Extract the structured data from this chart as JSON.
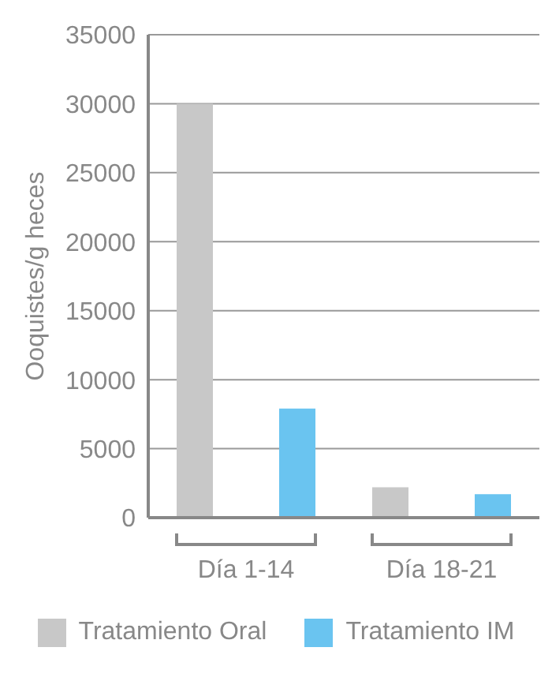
{
  "chart_data": {
    "type": "bar",
    "ylabel": "Ooquistes/g heces",
    "categories": [
      "Día 1-14",
      "Día 18-21"
    ],
    "series": [
      {
        "name": "Tratamiento Oral",
        "color": "#c8c8c8",
        "values": [
          30000,
          2200
        ]
      },
      {
        "name": "Tratamiento IM",
        "color": "#6ac4f0",
        "values": [
          7900,
          1700
        ]
      }
    ],
    "ylim": [
      0,
      35000
    ],
    "yticks": [
      0,
      5000,
      10000,
      15000,
      20000,
      25000,
      30000,
      35000
    ],
    "grid": "y",
    "legend": "bottom"
  }
}
